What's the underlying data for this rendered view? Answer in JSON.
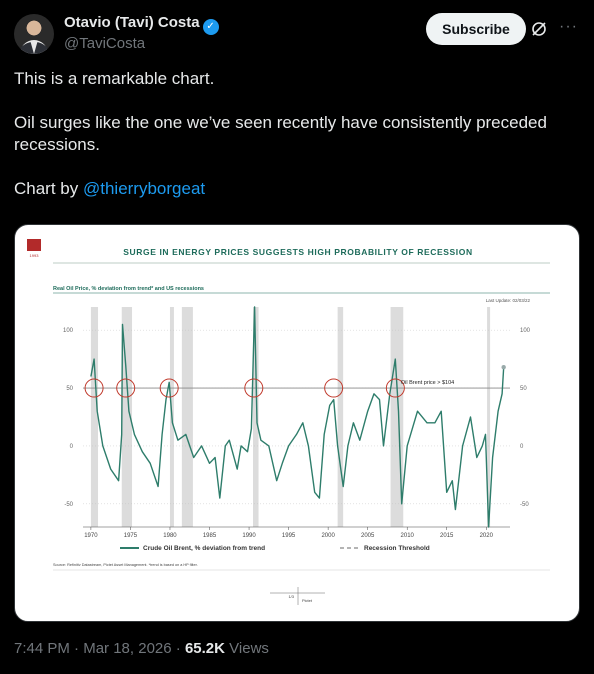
{
  "author": {
    "name": "Otavio (Tavi) Costa",
    "handle": "@TaviCosta"
  },
  "header": {
    "subscribe_label": "Subscribe",
    "grok_icon": "grok-icon",
    "more_icon": "more-icon",
    "verified_icon": "verified-badge-icon"
  },
  "tweet": {
    "line1": "This is a remarkable chart.",
    "line2": "Oil surges like the one we’ve seen recently have consistently preceded recessions.",
    "line3_prefix": "Chart by ",
    "line3_mention": "@thierryborgeat"
  },
  "image": {
    "logo_text": "1993",
    "title": "SURGE IN ENERGY PRICES SUGGESTS HIGH PROBABILITY OF RECESSION",
    "subtitle": "Real Oil Price, % deviation from trend* and US recessions",
    "last_update": "Last Update: 02/03/22",
    "annotation": "Oil Brent price > $104",
    "source": "Source: Refinitiv Datastream, Pictet Asset Management. *trend is based on a HP filter.",
    "page_number": "1/3",
    "page_brand": "Pictet"
  },
  "chart_data": {
    "type": "line",
    "title": "",
    "xlabel": "",
    "ylabel": "",
    "xlim": [
      1969,
      2023
    ],
    "ylim": [
      -70,
      120
    ],
    "x_ticks": [
      1970,
      1975,
      1980,
      1985,
      1990,
      1995,
      2000,
      2005,
      2010,
      2015,
      2020
    ],
    "y_ticks": [
      100,
      50,
      0,
      -50
    ],
    "legend": [
      "Crude Oil Brent, % deviation from trend",
      "Recession Threshold"
    ],
    "legend_position": "bottom",
    "recession_threshold": 50,
    "recessions": [
      [
        1970.0,
        1970.9
      ],
      [
        1973.9,
        1975.2
      ],
      [
        1980.0,
        1980.5
      ],
      [
        1981.5,
        1982.9
      ],
      [
        1990.5,
        1991.2
      ],
      [
        2001.2,
        2001.9
      ],
      [
        2007.9,
        2009.5
      ],
      [
        2020.1,
        2020.4
      ]
    ],
    "highlighted_peaks": [
      1970.4,
      1974.4,
      1979.9,
      1990.6,
      2000.7,
      2008.5
    ],
    "series": [
      {
        "name": "Crude Oil Brent, % deviation from trend",
        "x": [
          1970.0,
          1970.4,
          1970.8,
          1971.5,
          1972.5,
          1973.5,
          1973.9,
          1974.0,
          1974.4,
          1974.8,
          1975.5,
          1976.5,
          1977.5,
          1978.5,
          1979.0,
          1979.5,
          1979.9,
          1980.3,
          1981.0,
          1982.0,
          1983.0,
          1984.0,
          1985.0,
          1985.7,
          1986.3,
          1987.0,
          1987.5,
          1988.5,
          1989.0,
          1989.8,
          1990.3,
          1990.7,
          1991.0,
          1991.5,
          1992.5,
          1993.5,
          1994.2,
          1995.0,
          1996.0,
          1996.8,
          1997.5,
          1998.3,
          1998.9,
          1999.5,
          2000.2,
          2000.7,
          2001.2,
          2001.9,
          2002.5,
          2003.2,
          2004.0,
          2005.0,
          2005.8,
          2006.5,
          2007.0,
          2007.8,
          2008.5,
          2008.9,
          2009.3,
          2010.0,
          2011.3,
          2012.5,
          2013.5,
          2014.3,
          2015.0,
          2015.7,
          2016.1,
          2017.0,
          2018.0,
          2018.8,
          2019.5,
          2019.9,
          2020.3,
          2020.8,
          2021.5,
          2022.0,
          2022.2
        ],
        "y": [
          60,
          75,
          30,
          0,
          -20,
          -30,
          10,
          105,
          70,
          30,
          10,
          -5,
          -15,
          -35,
          10,
          40,
          55,
          20,
          5,
          10,
          -10,
          0,
          -15,
          -10,
          -45,
          0,
          5,
          -20,
          0,
          -5,
          15,
          120,
          20,
          5,
          0,
          -30,
          -15,
          0,
          10,
          20,
          0,
          -40,
          -45,
          10,
          35,
          40,
          0,
          -35,
          0,
          20,
          5,
          30,
          45,
          40,
          0,
          45,
          75,
          30,
          -50,
          0,
          30,
          20,
          20,
          30,
          -40,
          -30,
          -55,
          0,
          25,
          -10,
          0,
          10,
          -70,
          -10,
          30,
          45,
          68
        ]
      }
    ]
  },
  "footer": {
    "time": "7:44 PM",
    "date": "Mar 18, 2026",
    "views_count": "65.2K",
    "views_label": "Views"
  }
}
